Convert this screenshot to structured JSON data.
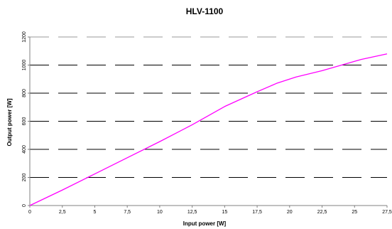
{
  "chart_data": {
    "type": "line",
    "title": "HLV-1100",
    "xlabel": "Input power [W]",
    "ylabel": "Output power [W]",
    "xlim": [
      0,
      27.5
    ],
    "ylim": [
      0,
      1200
    ],
    "x_ticks": [
      0,
      2.5,
      5,
      7.5,
      10,
      12.5,
      15,
      17.5,
      20,
      22.5,
      25,
      27.5
    ],
    "x_tick_labels": [
      "0",
      "2,5",
      "5",
      "7,5",
      "10",
      "12,5",
      "15",
      "17,5",
      "20",
      "22,5",
      "25",
      "27,5"
    ],
    "y_ticks": [
      0,
      200,
      400,
      600,
      800,
      1000,
      1200
    ],
    "y_tick_labels": [
      "0",
      "200",
      "400",
      "600",
      "800",
      "1000",
      "1200"
    ],
    "grid": "horizontal dashed",
    "legend": "none",
    "series": [
      {
        "color": "#ff00ff",
        "x": [
          0,
          2.5,
          5,
          7.5,
          10,
          12.5,
          15,
          17.5,
          19,
          20.5,
          22.5,
          24,
          25.5,
          27.5
        ],
        "y": [
          0,
          110,
          225,
          340,
          455,
          575,
          705,
          810,
          870,
          915,
          960,
          1000,
          1040,
          1080
        ]
      }
    ]
  }
}
